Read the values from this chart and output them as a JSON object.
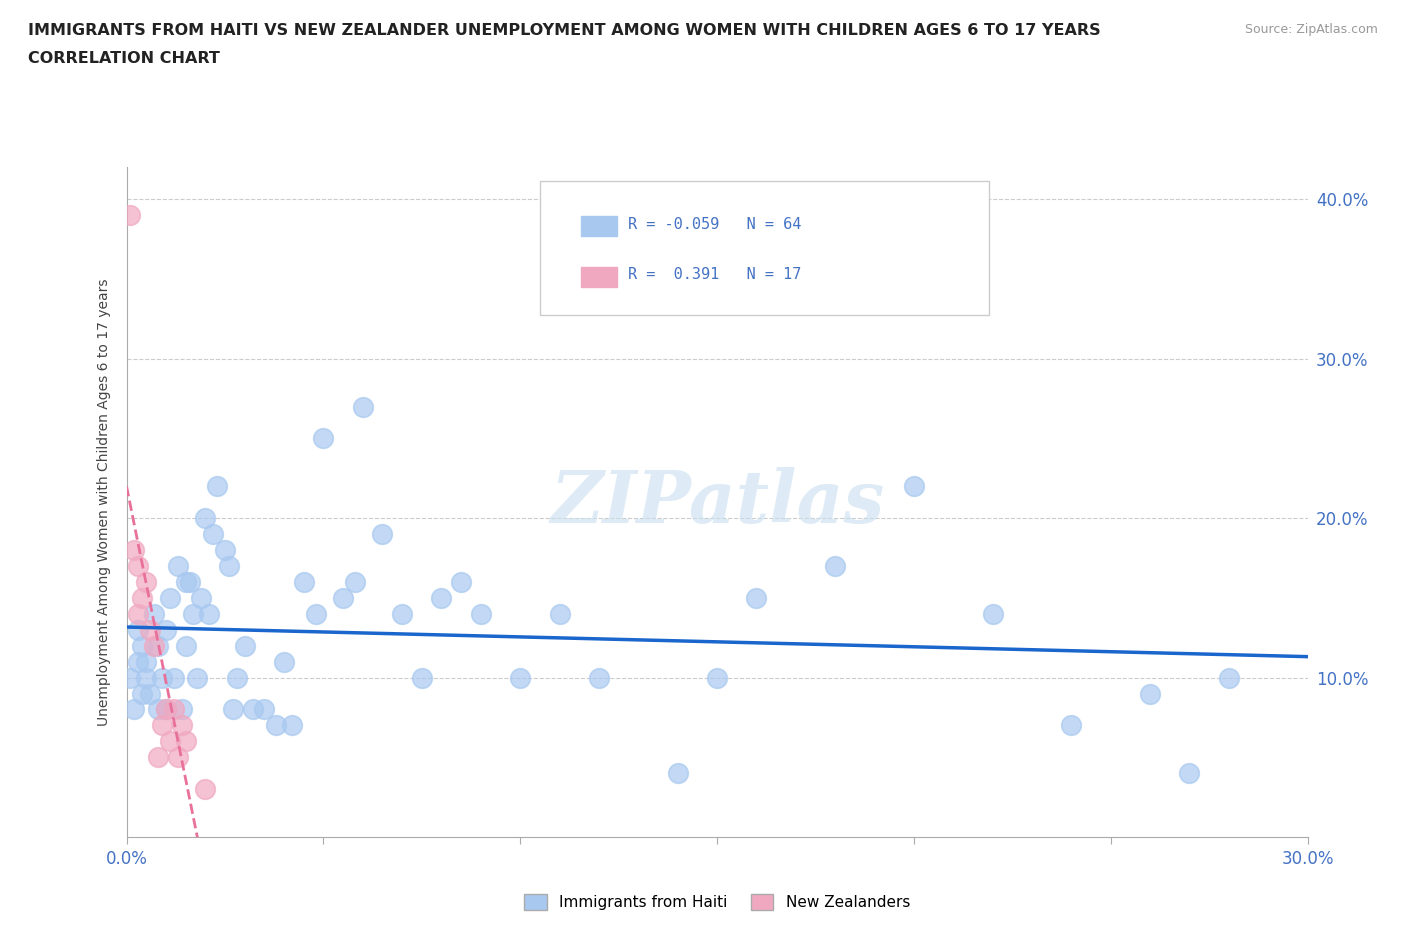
{
  "title_line1": "IMMIGRANTS FROM HAITI VS NEW ZEALANDER UNEMPLOYMENT AMONG WOMEN WITH CHILDREN AGES 6 TO 17 YEARS",
  "title_line2": "CORRELATION CHART",
  "source_text": "Source: ZipAtlas.com",
  "ylabel": "Unemployment Among Women with Children Ages 6 to 17 years",
  "xlim": [
    0.0,
    0.3
  ],
  "ylim": [
    0.0,
    0.42
  ],
  "xticks": [
    0.0,
    0.05,
    0.1,
    0.15,
    0.2,
    0.25,
    0.3
  ],
  "xtick_labels": [
    "0.0%",
    "",
    "",
    "",
    "",
    "",
    "30.0%"
  ],
  "ytick_positions": [
    0.1,
    0.2,
    0.3,
    0.4
  ],
  "ytick_labels": [
    "10.0%",
    "20.0%",
    "30.0%",
    "40.0%"
  ],
  "r_haiti": -0.059,
  "n_haiti": 64,
  "r_nz": 0.391,
  "n_nz": 17,
  "haiti_color": "#a8c8f0",
  "nz_color": "#f0a8c0",
  "haiti_line_color": "#1a66cc",
  "nz_line_color": "#e8709a",
  "watermark": "ZIPatlas",
  "haiti_x": [
    0.001,
    0.002,
    0.003,
    0.003,
    0.004,
    0.004,
    0.005,
    0.005,
    0.006,
    0.007,
    0.008,
    0.008,
    0.009,
    0.01,
    0.01,
    0.011,
    0.012,
    0.013,
    0.014,
    0.015,
    0.015,
    0.016,
    0.017,
    0.018,
    0.019,
    0.02,
    0.021,
    0.022,
    0.023,
    0.025,
    0.026,
    0.027,
    0.028,
    0.03,
    0.032,
    0.035,
    0.038,
    0.04,
    0.042,
    0.045,
    0.048,
    0.05,
    0.055,
    0.058,
    0.06,
    0.065,
    0.07,
    0.075,
    0.08,
    0.085,
    0.09,
    0.1,
    0.11,
    0.12,
    0.14,
    0.15,
    0.16,
    0.18,
    0.2,
    0.22,
    0.24,
    0.26,
    0.27,
    0.28
  ],
  "haiti_y": [
    0.1,
    0.08,
    0.13,
    0.11,
    0.12,
    0.09,
    0.11,
    0.1,
    0.09,
    0.14,
    0.08,
    0.12,
    0.1,
    0.08,
    0.13,
    0.15,
    0.1,
    0.17,
    0.08,
    0.16,
    0.12,
    0.16,
    0.14,
    0.1,
    0.15,
    0.2,
    0.14,
    0.19,
    0.22,
    0.18,
    0.17,
    0.08,
    0.1,
    0.12,
    0.08,
    0.08,
    0.07,
    0.11,
    0.07,
    0.16,
    0.14,
    0.25,
    0.15,
    0.16,
    0.27,
    0.19,
    0.14,
    0.1,
    0.15,
    0.16,
    0.14,
    0.1,
    0.14,
    0.1,
    0.04,
    0.1,
    0.15,
    0.17,
    0.22,
    0.14,
    0.07,
    0.09,
    0.04,
    0.1
  ],
  "nz_x": [
    0.001,
    0.002,
    0.003,
    0.003,
    0.004,
    0.005,
    0.006,
    0.007,
    0.008,
    0.009,
    0.01,
    0.011,
    0.012,
    0.013,
    0.014,
    0.015,
    0.02
  ],
  "nz_y": [
    0.39,
    0.18,
    0.17,
    0.14,
    0.15,
    0.16,
    0.13,
    0.12,
    0.05,
    0.07,
    0.08,
    0.06,
    0.08,
    0.05,
    0.07,
    0.06,
    0.03
  ]
}
